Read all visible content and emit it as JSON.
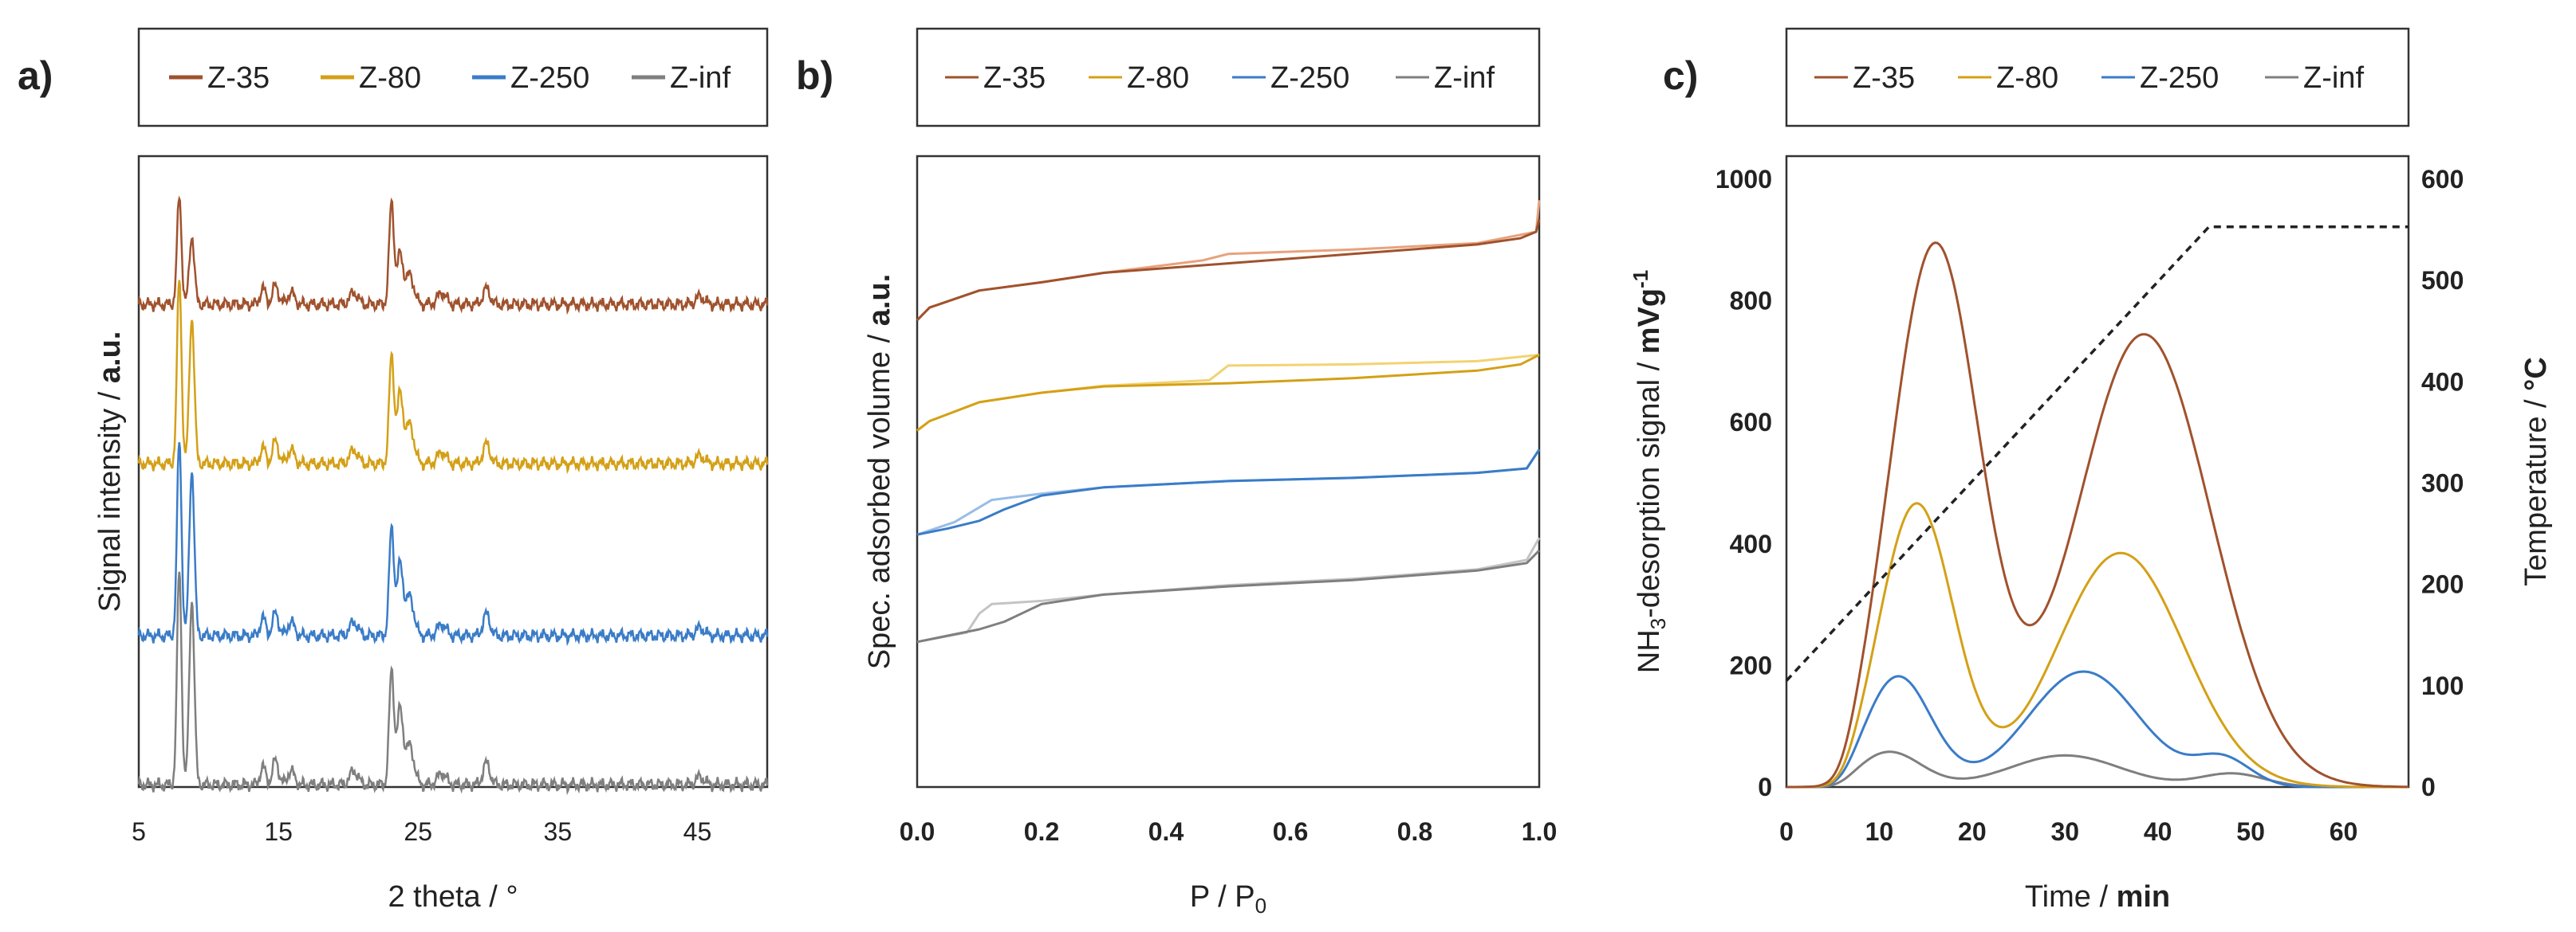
{
  "figure": {
    "panels": [
      "a)",
      "b)",
      "c)"
    ]
  },
  "legend": {
    "series": [
      {
        "name": "Z-35",
        "color": "#a0522d",
        "light": "#e8a27c"
      },
      {
        "name": "Z-80",
        "color": "#d4a017",
        "light": "#f2d373"
      },
      {
        "name": "Z-250",
        "color": "#3a7cc8",
        "light": "#98bde8"
      },
      {
        "name": "Z-inf",
        "color": "#7f7f7f",
        "light": "#c4c4c4"
      }
    ]
  },
  "chart_data": [
    {
      "panel": "a)",
      "type": "line",
      "title": "",
      "xlabel": "2 theta / °",
      "ylabel_plain": "Signal intensity / ",
      "ylabel_bold": "a.u.",
      "xlim": [
        5,
        50
      ],
      "xticks": [
        5,
        15,
        25,
        35,
        45
      ],
      "yticks_shown": false,
      "peaks_2theta": [
        7.9,
        8.8,
        13.9,
        14.8,
        15.9,
        20.4,
        23.1,
        23.7,
        24.4,
        26.7,
        29.9,
        45.2
      ],
      "series": [
        {
          "name": "Z-35",
          "offset": 3,
          "peak_heights": [
            0.55,
            0.35,
            0.08,
            0.1,
            0.06,
            0.06,
            0.52,
            0.25,
            0.15,
            0.06,
            0.08,
            0.04
          ]
        },
        {
          "name": "Z-80",
          "offset": 2,
          "peak_heights": [
            0.95,
            0.75,
            0.08,
            0.12,
            0.07,
            0.07,
            0.55,
            0.35,
            0.2,
            0.06,
            0.1,
            0.04
          ]
        },
        {
          "name": "Z-250",
          "offset": 1,
          "peak_heights": [
            1.0,
            0.85,
            0.09,
            0.12,
            0.07,
            0.07,
            0.55,
            0.36,
            0.2,
            0.06,
            0.11,
            0.04
          ]
        },
        {
          "name": "Z-inf",
          "offset": 0,
          "peak_heights": [
            1.1,
            0.95,
            0.09,
            0.13,
            0.07,
            0.07,
            0.58,
            0.38,
            0.2,
            0.06,
            0.11,
            0.04
          ]
        }
      ]
    },
    {
      "panel": "b)",
      "type": "line",
      "title": "",
      "xlabel": "P / P",
      "xlabel_sub": "0",
      "ylabel_plain": "Spec. adsorbed volume  / ",
      "ylabel_bold": "a.u.",
      "xlim": [
        0,
        1
      ],
      "xticks": [
        0.0,
        0.2,
        0.4,
        0.6,
        0.8,
        1.0
      ],
      "xtick_labels": [
        "0.0",
        "0.2",
        "0.4",
        "0.6",
        "0.8",
        "1.0"
      ],
      "yticks_shown": false,
      "series": [
        {
          "name": "Z-35",
          "adsorption": [
            [
              0,
              0.74
            ],
            [
              0.02,
              0.76
            ],
            [
              0.1,
              0.787
            ],
            [
              0.2,
              0.8
            ],
            [
              0.3,
              0.815
            ],
            [
              0.5,
              0.83
            ],
            [
              0.7,
              0.845
            ],
            [
              0.9,
              0.86
            ],
            [
              0.97,
              0.87
            ],
            [
              0.995,
              0.88
            ],
            [
              1.0,
              0.9
            ]
          ],
          "desorption": [
            [
              1.0,
              0.93
            ],
            [
              0.995,
              0.88
            ],
            [
              0.9,
              0.862
            ],
            [
              0.7,
              0.852
            ],
            [
              0.5,
              0.845
            ],
            [
              0.46,
              0.835
            ],
            [
              0.3,
              0.815
            ],
            [
              0.2,
              0.8
            ],
            [
              0.1,
              0.787
            ],
            [
              0.02,
              0.76
            ],
            [
              0,
              0.74
            ]
          ]
        },
        {
          "name": "Z-80",
          "adsorption": [
            [
              0,
              0.565
            ],
            [
              0.02,
              0.58
            ],
            [
              0.1,
              0.61
            ],
            [
              0.2,
              0.625
            ],
            [
              0.3,
              0.635
            ],
            [
              0.5,
              0.64
            ],
            [
              0.7,
              0.648
            ],
            [
              0.9,
              0.66
            ],
            [
              0.97,
              0.67
            ],
            [
              1.0,
              0.685
            ]
          ],
          "desorption": [
            [
              1.0,
              0.685
            ],
            [
              0.9,
              0.675
            ],
            [
              0.7,
              0.67
            ],
            [
              0.5,
              0.668
            ],
            [
              0.47,
              0.645
            ],
            [
              0.3,
              0.636
            ],
            [
              0.2,
              0.625
            ],
            [
              0.1,
              0.61
            ],
            [
              0.02,
              0.58
            ],
            [
              0,
              0.565
            ]
          ]
        },
        {
          "name": "Z-250",
          "adsorption": [
            [
              0,
              0.4
            ],
            [
              0.05,
              0.41
            ],
            [
              0.1,
              0.422
            ],
            [
              0.14,
              0.44
            ],
            [
              0.2,
              0.462
            ],
            [
              0.3,
              0.475
            ],
            [
              0.5,
              0.485
            ],
            [
              0.7,
              0.49
            ],
            [
              0.9,
              0.498
            ],
            [
              0.98,
              0.505
            ],
            [
              1.0,
              0.535
            ]
          ],
          "desorption": [
            [
              1.0,
              0.535
            ],
            [
              0.98,
              0.505
            ],
            [
              0.9,
              0.498
            ],
            [
              0.7,
              0.49
            ],
            [
              0.5,
              0.485
            ],
            [
              0.3,
              0.475
            ],
            [
              0.2,
              0.465
            ],
            [
              0.12,
              0.455
            ],
            [
              0.06,
              0.42
            ],
            [
              0,
              0.4
            ]
          ]
        },
        {
          "name": "Z-inf",
          "adsorption": [
            [
              0,
              0.23
            ],
            [
              0.05,
              0.24
            ],
            [
              0.1,
              0.25
            ],
            [
              0.14,
              0.262
            ],
            [
              0.2,
              0.29
            ],
            [
              0.3,
              0.305
            ],
            [
              0.5,
              0.318
            ],
            [
              0.7,
              0.328
            ],
            [
              0.9,
              0.343
            ],
            [
              0.98,
              0.355
            ],
            [
              1.0,
              0.375
            ]
          ],
          "desorption": [
            [
              1.0,
              0.395
            ],
            [
              0.98,
              0.36
            ],
            [
              0.9,
              0.345
            ],
            [
              0.7,
              0.33
            ],
            [
              0.5,
              0.32
            ],
            [
              0.3,
              0.305
            ],
            [
              0.2,
              0.295
            ],
            [
              0.12,
              0.29
            ],
            [
              0.1,
              0.275
            ],
            [
              0.08,
              0.245
            ],
            [
              0,
              0.23
            ]
          ]
        }
      ]
    },
    {
      "panel": "c)",
      "type": "line",
      "title": "",
      "xlabel_plain": "Time / ",
      "xlabel_bold": "min",
      "ylabel_prefix": "NH",
      "ylabel_sub": "3",
      "ylabel_mid": "-desorption signal  / ",
      "ylabel_bold": "mVg",
      "ylabel_sup": "-1",
      "y2label_plain": "Temperature / ",
      "y2label_bold": "°C",
      "xlim": [
        0,
        67
      ],
      "ylim": [
        0,
        1000
      ],
      "y2lim": [
        0,
        600
      ],
      "xticks": [
        0,
        10,
        20,
        30,
        40,
        50,
        60
      ],
      "yticks": [
        0,
        200,
        400,
        600,
        800,
        1000
      ],
      "y2ticks": [
        0,
        100,
        200,
        300,
        400,
        500,
        600
      ],
      "series": [
        {
          "name": "Z-35",
          "gaussians": [
            [
              890,
              16,
              4.8
            ],
            [
              745,
              38.5,
              7.2
            ]
          ]
        },
        {
          "name": "Z-80",
          "gaussians": [
            [
              465,
              14,
              4.0
            ],
            [
              385,
              36,
              6.8
            ]
          ]
        },
        {
          "name": "Z-250",
          "gaussians": [
            [
              182,
              12,
              3.6
            ],
            [
              190,
              32,
              6.0
            ],
            [
              45,
              47,
              3.0
            ]
          ]
        },
        {
          "name": "Z-inf",
          "gaussians": [
            [
              58,
              11,
              3.5
            ],
            [
              52,
              30,
              6.0
            ],
            [
              22,
              48,
              3.5
            ]
          ]
        }
      ],
      "temperature": {
        "style": "dashed",
        "points": [
          [
            0,
            105
          ],
          [
            45.5,
            553
          ],
          [
            67,
            553
          ]
        ]
      }
    }
  ]
}
